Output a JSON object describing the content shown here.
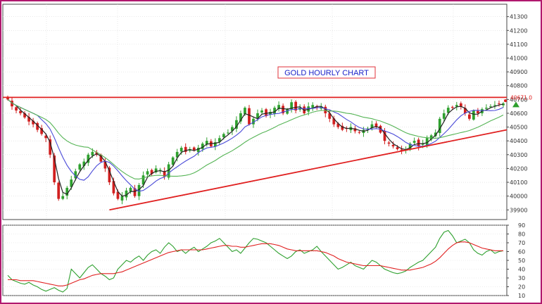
{
  "chart_data": [
    {
      "type": "candlestick",
      "title": "GOLD HOURLY CHART",
      "ylim": [
        39830,
        41390
      ],
      "yticks": [
        39900,
        40000,
        40100,
        40200,
        40300,
        40400,
        40500,
        40600,
        40700,
        40800,
        40900,
        41000,
        41100,
        41200,
        41300
      ],
      "last_price_label": "40671.0",
      "n_bars": 118,
      "grid": true,
      "colors": {
        "up": "#2ea02e",
        "down": "#d11f1f",
        "ma_fast": "#222222",
        "ma_mid": "#4a4ad8",
        "ma_slow": "#55b455",
        "trend": "#e02020"
      },
      "close": [
        40700,
        40650,
        40620,
        40600,
        40570,
        40540,
        40520,
        40480,
        40450,
        40420,
        40300,
        40100,
        39980,
        40000,
        40060,
        40120,
        40180,
        40230,
        40250,
        40300,
        40320,
        40300,
        40250,
        40200,
        40100,
        40020,
        39980,
        40000,
        40040,
        40060,
        40000,
        40080,
        40150,
        40180,
        40160,
        40200,
        40190,
        40140,
        40230,
        40280,
        40320,
        40350,
        40320,
        40340,
        40330,
        40350,
        40380,
        40400,
        40360,
        40390,
        40420,
        40450,
        40460,
        40500,
        40550,
        40600,
        40640,
        40520,
        40560,
        40600,
        40620,
        40580,
        40610,
        40640,
        40660,
        40600,
        40630,
        40680,
        40620,
        40640,
        40600,
        40650,
        40660,
        40640,
        40650,
        40600,
        40560,
        40520,
        40500,
        40480,
        40490,
        40500,
        40470,
        40460,
        40480,
        40490,
        40520,
        40500,
        40460,
        40400,
        40380,
        40360,
        40340,
        40330,
        40340,
        40380,
        40400,
        40360,
        40380,
        40420,
        40440,
        40460,
        40560,
        40600,
        40640,
        40640,
        40660,
        40650,
        40600,
        40560,
        40620,
        40600,
        40630,
        40640,
        40650,
        40660,
        40670,
        40671
      ],
      "moving_averages": [
        "fast",
        "mid",
        "slow"
      ],
      "trendlines": [
        {
          "name": "resistance",
          "from": [
            0,
            40715
          ],
          "to": [
            117,
            40715
          ]
        },
        {
          "name": "rising support",
          "from": [
            24,
            39900
          ],
          "to": [
            117,
            40480
          ]
        }
      ]
    },
    {
      "type": "line",
      "ylim": [
        10,
        90
      ],
      "yticks": [
        10,
        20,
        30,
        40,
        50,
        60,
        70,
        80,
        90
      ],
      "series": [
        {
          "color": "#2ea02e",
          "values": [
            33,
            28,
            26,
            24,
            23,
            25,
            22,
            20,
            17,
            15,
            17,
            19,
            16,
            14,
            18,
            40,
            35,
            30,
            36,
            42,
            45,
            40,
            35,
            32,
            28,
            30,
            40,
            45,
            50,
            48,
            52,
            55,
            50,
            56,
            60,
            62,
            58,
            65,
            70,
            66,
            60,
            62,
            58,
            62,
            65,
            60,
            63,
            66,
            70,
            72,
            75,
            70,
            65,
            60,
            62,
            58,
            64,
            70,
            75,
            74,
            72,
            70,
            66,
            62,
            58,
            55,
            52,
            55,
            60,
            62,
            58,
            60,
            62,
            66,
            60,
            55,
            50,
            45,
            40,
            42,
            45,
            48,
            44,
            42,
            40,
            45,
            50,
            48,
            44,
            40,
            38,
            36,
            35,
            36,
            38,
            42,
            45,
            48,
            50,
            55,
            60,
            65,
            75,
            82,
            84,
            78,
            70,
            72,
            74,
            70,
            62,
            58,
            56,
            60,
            62,
            58,
            60,
            61
          ]
        },
        {
          "color": "#e02020",
          "values": [
            28,
            28,
            28,
            27,
            27,
            27,
            27,
            26,
            25,
            24,
            23,
            22,
            21,
            21,
            22,
            24,
            26,
            28,
            29,
            31,
            33,
            34,
            35,
            35,
            35,
            35,
            36,
            37,
            39,
            41,
            43,
            45,
            47,
            49,
            51,
            53,
            55,
            57,
            59,
            60,
            61,
            62,
            62,
            62,
            62,
            62,
            62,
            63,
            64,
            65,
            66,
            67,
            67,
            66,
            66,
            65,
            65,
            66,
            67,
            68,
            69,
            69,
            69,
            68,
            67,
            65,
            63,
            62,
            61,
            61,
            61,
            61,
            61,
            61,
            60,
            59,
            57,
            55,
            52,
            50,
            48,
            47,
            46,
            45,
            44,
            44,
            44,
            44,
            44,
            43,
            42,
            41,
            40,
            39,
            39,
            39,
            40,
            41,
            42,
            44,
            46,
            49,
            53,
            58,
            63,
            67,
            70,
            71,
            71,
            70,
            68,
            66,
            64,
            63,
            62,
            61,
            61,
            61
          ]
        }
      ]
    }
  ]
}
